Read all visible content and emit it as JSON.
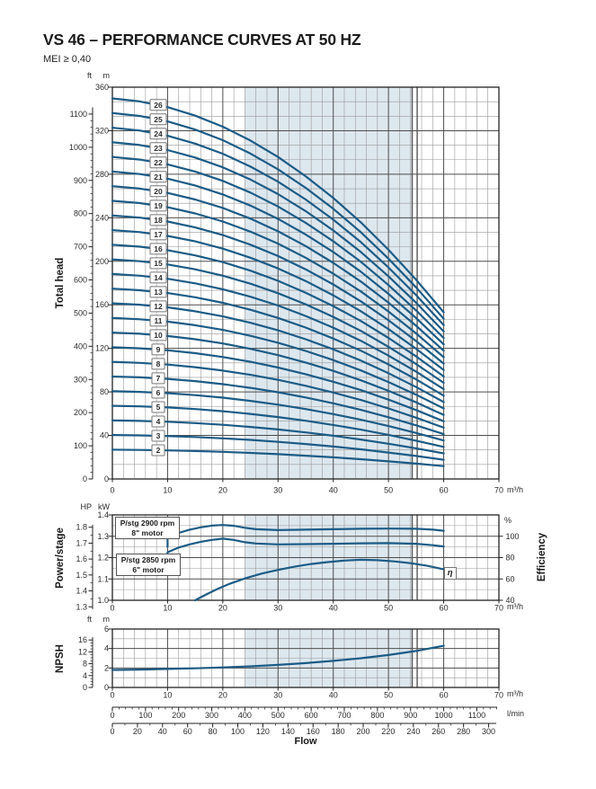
{
  "page": {
    "title": "VS 46 – PERFORMANCE CURVES AT 50 HZ",
    "subtitle": "MEI ≥ 0,40"
  },
  "labels": {
    "total_head": "Total head",
    "power_stage": "Power/stage",
    "npsh": "NPSH",
    "efficiency": "Efficiency",
    "flow": "Flow",
    "eta": "η",
    "unit_ft": "ft",
    "unit_m": "m",
    "unit_hp": "HP",
    "unit_kw": "kW",
    "unit_pct": "%",
    "unit_m3h": "m³/h",
    "unit_lmin": "l/min",
    "motor_box_1": {
      "line1": "P/stg 2900 rpm",
      "line2": "8\" motor"
    },
    "motor_box_2": {
      "line1": "P/stg 2850 rpm",
      "line2": "6\" motor"
    }
  },
  "colors": {
    "curve": "#1b5b86",
    "band": "#dde7ee",
    "grid_minor": "#999999",
    "grid_major": "#4d4d4d",
    "border": "#222222",
    "limit_line": "#555555",
    "tick_text": "#2b2b2b"
  },
  "chart_data": [
    {
      "type": "line",
      "id": "total_head",
      "title": "Total head vs flow, stages 2–26",
      "ylabel": "Total head",
      "y_units": [
        "m",
        "ft"
      ],
      "x_unit": "m³/h",
      "xlim": [
        0,
        70
      ],
      "ylim_m": [
        0,
        360
      ],
      "x_ticks": [
        0,
        10,
        20,
        30,
        40,
        50,
        60,
        70
      ],
      "y_ticks_m": [
        0,
        40,
        80,
        120,
        160,
        200,
        240,
        280,
        320,
        360
      ],
      "y_ticks_ft": [
        0,
        100,
        200,
        300,
        400,
        500,
        600,
        700,
        800,
        900,
        1000,
        1100
      ],
      "duty_band_x": [
        24,
        54.3
      ],
      "limit_lines_x": [
        54.3,
        55.2
      ],
      "stages": [
        2,
        3,
        4,
        5,
        6,
        7,
        8,
        9,
        10,
        11,
        12,
        13,
        14,
        15,
        16,
        17,
        18,
        19,
        20,
        21,
        22,
        23,
        24,
        25,
        26
      ],
      "stage_label_x": 8.3,
      "per_stage_head_m": {
        "x": [
          0,
          5,
          10,
          15,
          20,
          25,
          30,
          35,
          40,
          45,
          50,
          55,
          60
        ],
        "h": [
          13.45,
          13.34,
          13.14,
          12.84,
          12.45,
          11.96,
          11.38,
          10.7,
          9.93,
          9.07,
          8.1,
          7.04,
          5.89
        ]
      }
    },
    {
      "type": "line",
      "id": "power_per_stage_and_efficiency",
      "title": "Power per stage and efficiency",
      "ylabel": "Power/stage",
      "y_units": [
        "kW",
        "HP"
      ],
      "y2label": "Efficiency",
      "y2_unit": "%",
      "x_unit": "m³/h",
      "xlim": [
        0,
        70
      ],
      "ylim_kw": [
        1.0,
        1.4
      ],
      "x_ticks": [
        0,
        10,
        20,
        30,
        40,
        50,
        60,
        70
      ],
      "y_ticks_kw": [
        1.0,
        1.1,
        1.2,
        1.3,
        1.4
      ],
      "y_ticks_hp": [
        1.3,
        1.4,
        1.5,
        1.6,
        1.7,
        1.8
      ],
      "efficiency_ticks_pct": [
        40,
        60,
        80,
        100
      ],
      "duty_band_x": [
        24,
        54.3
      ],
      "limit_lines_x": [
        54.3,
        55.2
      ],
      "series": [
        {
          "name": "P/stg 2900 rpm 8\" motor",
          "unit": "kW",
          "x": [
            10,
            12,
            14,
            16,
            18,
            20,
            22,
            24,
            26,
            30,
            35,
            40,
            45,
            50,
            55,
            58,
            60
          ],
          "kw": [
            1.295,
            1.316,
            1.331,
            1.342,
            1.35,
            1.353,
            1.349,
            1.34,
            1.333,
            1.329,
            1.331,
            1.333,
            1.335,
            1.336,
            1.335,
            1.331,
            1.326
          ]
        },
        {
          "name": "P/stg 2850 rpm 6\" motor",
          "unit": "kW",
          "x": [
            10,
            12,
            14,
            16,
            18,
            20,
            22,
            24,
            26,
            30,
            35,
            40,
            45,
            50,
            55,
            58,
            60
          ],
          "kw": [
            1.225,
            1.247,
            1.262,
            1.274,
            1.283,
            1.289,
            1.283,
            1.272,
            1.266,
            1.262,
            1.263,
            1.265,
            1.267,
            1.268,
            1.265,
            1.258,
            1.252
          ]
        },
        {
          "name": "η efficiency",
          "unit": "%",
          "x": [
            15,
            17,
            19,
            21,
            24,
            27,
            30,
            33,
            36,
            39,
            42,
            45,
            48,
            51,
            54,
            57,
            60
          ],
          "pct": [
            40,
            45.5,
            50.5,
            55,
            60.5,
            65,
            68.5,
            71.5,
            74,
            75.8,
            77.2,
            78,
            77.6,
            76.5,
            74.8,
            72.3,
            69
          ]
        }
      ]
    },
    {
      "type": "line",
      "id": "npsh",
      "title": "NPSH",
      "ylabel": "NPSH",
      "y_units": [
        "m",
        "ft"
      ],
      "x_unit": "m³/h",
      "xlim": [
        0,
        70
      ],
      "ylim_m": [
        0,
        6
      ],
      "x_ticks": [
        0,
        10,
        20,
        30,
        40,
        50,
        60,
        70
      ],
      "y_ticks_m": [
        0,
        2,
        4,
        6
      ],
      "y_ticks_ft": [
        0,
        4,
        8,
        12,
        16
      ],
      "duty_band_x": [
        24,
        54.3
      ],
      "limit_lines_x": [
        54.3,
        55.2
      ],
      "series": [
        {
          "name": "NPSH",
          "unit": "m",
          "x": [
            0,
            5,
            10,
            15,
            20,
            25,
            30,
            35,
            40,
            45,
            50,
            55,
            60
          ],
          "m": [
            1.8,
            1.84,
            1.9,
            1.97,
            2.06,
            2.17,
            2.32,
            2.5,
            2.73,
            3.0,
            3.33,
            3.75,
            4.28
          ]
        }
      ]
    }
  ],
  "flow_scales": {
    "l_min": {
      "label": "l/min",
      "ticks": [
        0,
        100,
        200,
        300,
        400,
        500,
        600,
        700,
        800,
        900,
        1000,
        1100
      ]
    },
    "flow": {
      "label": "Flow",
      "ticks": [
        0,
        20,
        40,
        60,
        80,
        100,
        120,
        140,
        160,
        180,
        200,
        220,
        240,
        260,
        280,
        300
      ]
    }
  }
}
